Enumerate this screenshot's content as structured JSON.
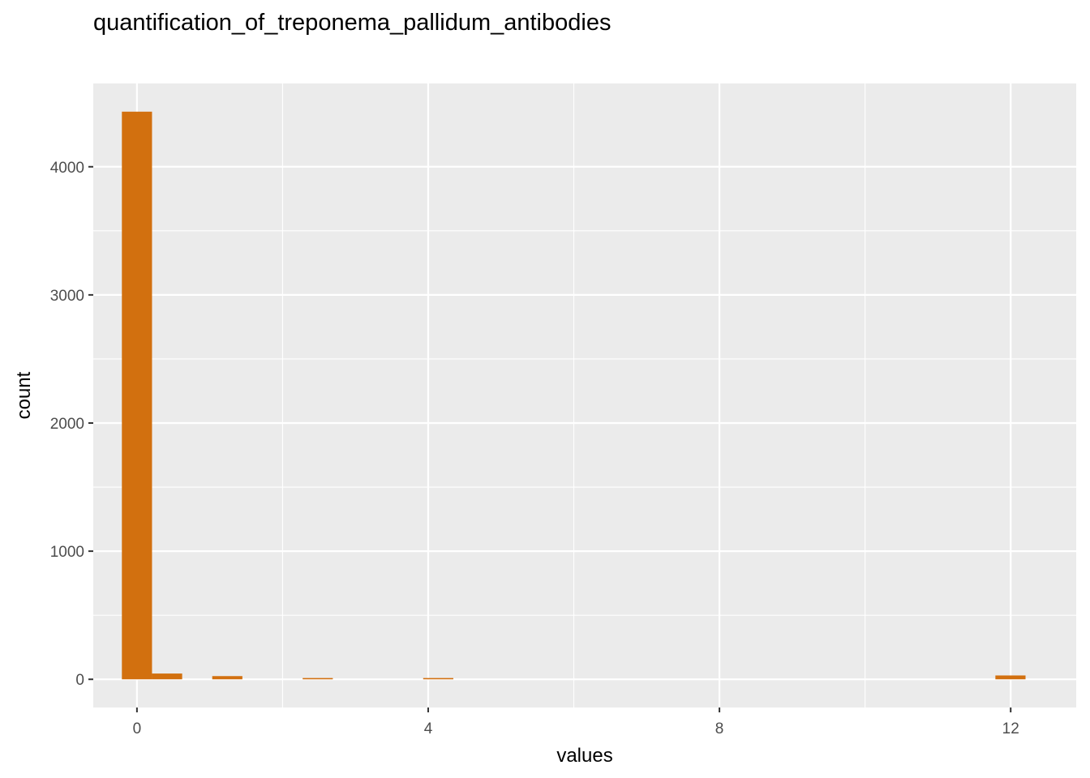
{
  "chart_data": {
    "type": "bar",
    "title": "quantification_of_treponema_pallidum_antibodies",
    "xlabel": "values",
    "ylabel": "count",
    "xlim": [
      -0.6,
      12.9
    ],
    "ylim": [
      -220,
      4650
    ],
    "x_ticks": [
      0,
      4,
      8,
      12
    ],
    "x_tick_labels": [
      "0",
      "4",
      "8",
      "12"
    ],
    "y_ticks": [
      0,
      1000,
      2000,
      3000,
      4000
    ],
    "y_tick_labels": [
      "0",
      "1000",
      "2000",
      "3000",
      "4000"
    ],
    "bin_width": 0.414,
    "bins": [
      {
        "x": 0.0,
        "count": 4430
      },
      {
        "x": 0.414,
        "count": 45
      },
      {
        "x": 1.241,
        "count": 25
      },
      {
        "x": 2.483,
        "count": 10
      },
      {
        "x": 4.138,
        "count": 10
      },
      {
        "x": 11.997,
        "count": 30
      }
    ],
    "bar_color": "#D2700F",
    "panel_background": "#EBEBEB",
    "grid": true,
    "legend": "none"
  }
}
